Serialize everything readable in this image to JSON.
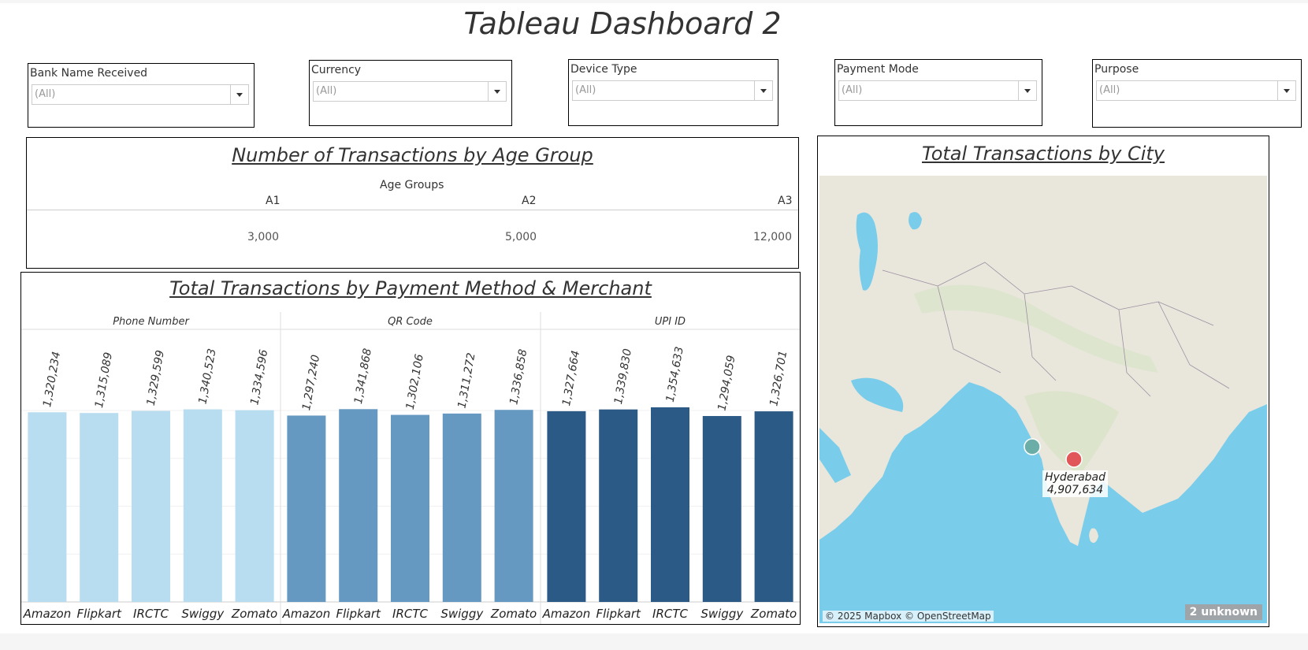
{
  "dashboard": {
    "title": "Tableau Dashboard 2"
  },
  "filters": [
    {
      "label": "Bank Name Received",
      "value": "(All)"
    },
    {
      "label": "Currency",
      "value": "(All)"
    },
    {
      "label": "Device Type",
      "value": "(All)"
    },
    {
      "label": "Payment Mode",
      "value": "(All)"
    },
    {
      "label": "Purpose",
      "value": "(All)"
    }
  ],
  "age_panel": {
    "title": "Number of Transactions by Age Group",
    "header": "Age Groups",
    "groups": [
      "A1",
      "A2",
      "A3"
    ],
    "values": [
      "3,000",
      "5,000",
      "12,000"
    ]
  },
  "map_panel": {
    "title": "Total Transactions by City",
    "marker_city": "Hyderabad",
    "marker_value": "4,907,634",
    "credit": "© 2025 Mapbox © OpenStreetMap",
    "unknown": "2 unknown",
    "colors": {
      "water": "#79cdea",
      "land": "#e9e6dc",
      "marker_red": "#e15759",
      "marker_teal": "#6aaea7"
    }
  },
  "bar_panel": {
    "title": "Total Transactions by Payment Method & Merchant"
  },
  "chart_data": {
    "type": "bar",
    "title": "Total Transactions by Payment Method & Merchant",
    "groups": [
      "Phone Number",
      "QR Code",
      "UPI ID"
    ],
    "categories": [
      "Amazon",
      "Flipkart",
      "IRCTC",
      "Swiggy",
      "Zomato"
    ],
    "series": [
      {
        "name": "Phone Number",
        "color": "#b8dcf0",
        "values": [
          1320234,
          1315089,
          1329599,
          1340523,
          1334596
        ],
        "labels": [
          "1,320,234",
          "1,315,089",
          "1,329,599",
          "1,340,523",
          "1,334,596"
        ]
      },
      {
        "name": "QR Code",
        "color": "#6699c2",
        "values": [
          1297240,
          1341868,
          1302106,
          1311272,
          1336858
        ],
        "labels": [
          "1,297,240",
          "1,341,868",
          "1,302,106",
          "1,311,272",
          "1,336,858"
        ]
      },
      {
        "name": "UPI ID",
        "color": "#2b5a86",
        "values": [
          1327664,
          1339830,
          1354633,
          1294059,
          1326701
        ],
        "labels": [
          "1,327,664",
          "1,339,830",
          "1,354,633",
          "1,294,059",
          "1,326,701"
        ]
      }
    ],
    "ylim": [
      0,
      1360000
    ],
    "grid": true
  }
}
